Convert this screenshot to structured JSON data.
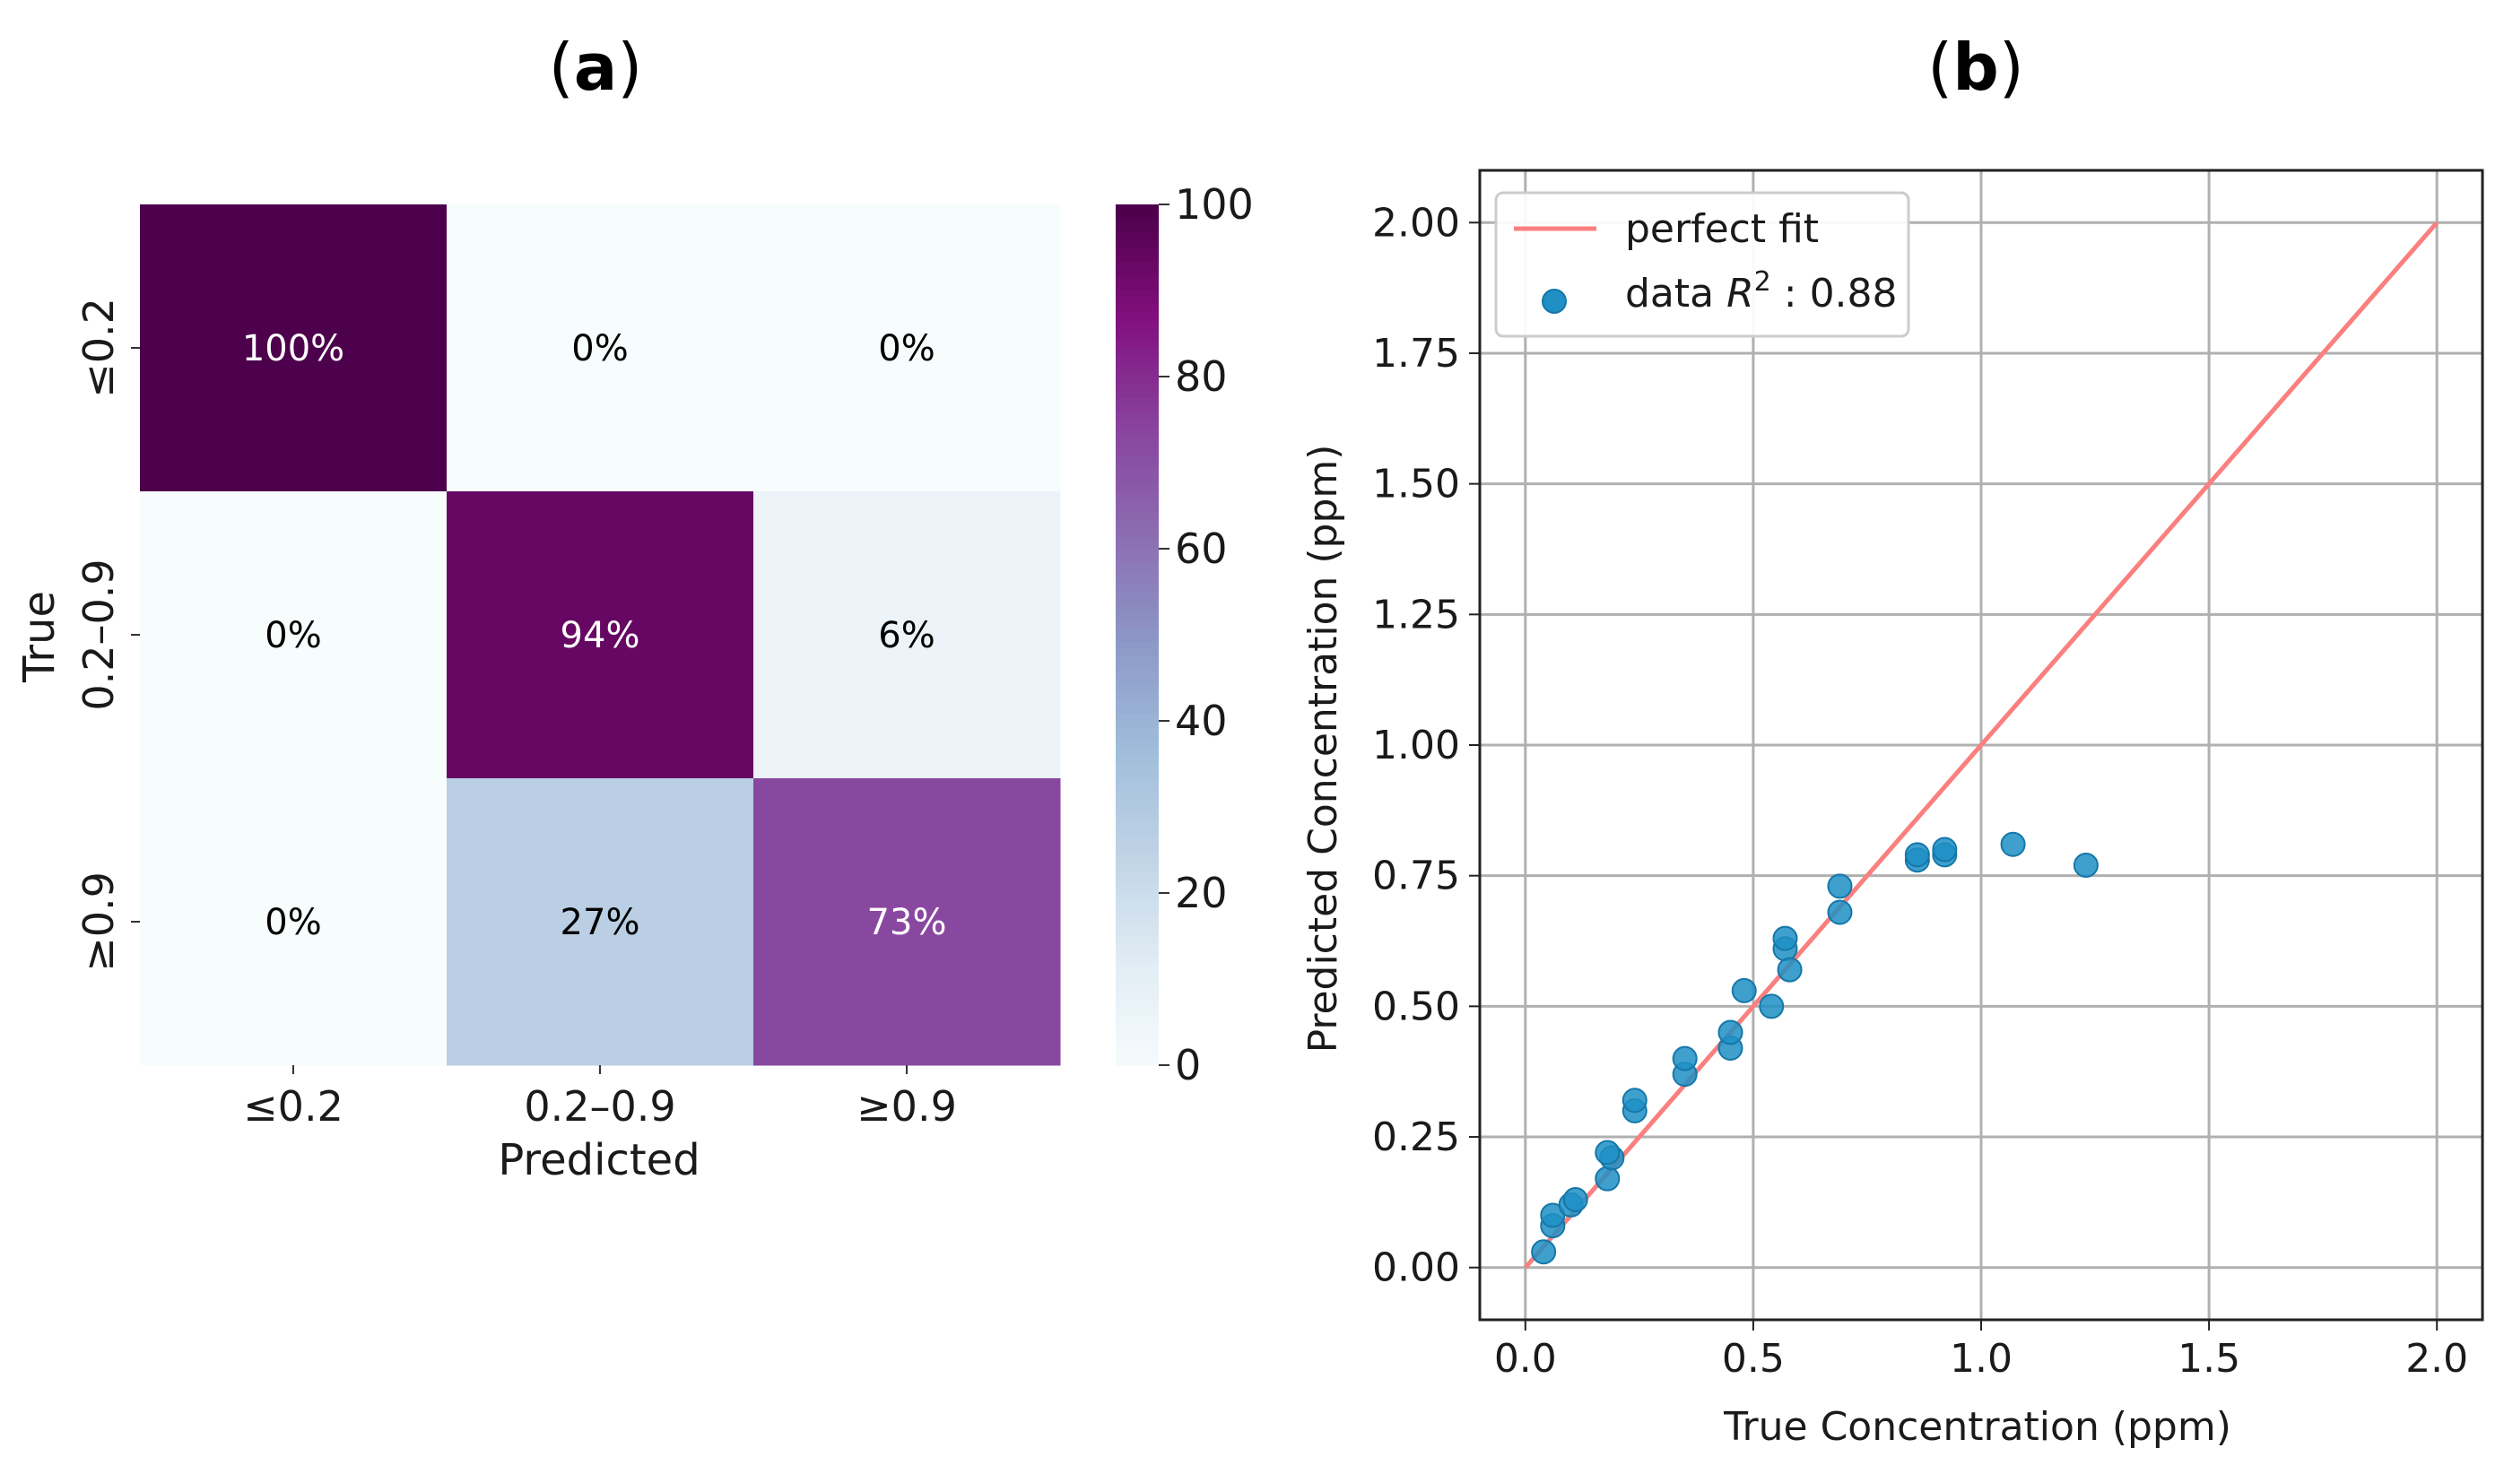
{
  "panels": {
    "a": {
      "label_open": "(",
      "label_letter": "a",
      "label_close": ")"
    },
    "b": {
      "label_open": "(",
      "label_letter": "b",
      "label_close": ")"
    }
  },
  "chart_data": [
    {
      "type": "heatmap",
      "xlabel": "Predicted",
      "ylabel": "True",
      "x_categories": [
        "≤0.2",
        "0.2–0.9",
        "≥0.9"
      ],
      "y_categories": [
        "≤0.2",
        "0.2–0.9",
        "≥0.9"
      ],
      "values": [
        [
          100,
          0,
          0
        ],
        [
          0,
          94,
          6
        ],
        [
          0,
          27,
          73
        ]
      ],
      "cell_labels": [
        [
          "100%",
          "0%",
          "0%"
        ],
        [
          "0%",
          "94%",
          "6%"
        ],
        [
          "0%",
          "27%",
          "73%"
        ]
      ],
      "colormap": "BuPu",
      "colorbar": {
        "min": 0,
        "max": 100,
        "ticks": [
          0,
          20,
          40,
          60,
          80,
          100
        ]
      }
    },
    {
      "type": "scatter",
      "xlabel": "True Concentration (ppm)",
      "ylabel": "Predicted Concentration (ppm)",
      "xlim": [
        -0.1,
        2.1
      ],
      "ylim": [
        -0.1,
        2.1
      ],
      "xticks": [
        0.0,
        0.5,
        1.0,
        1.5,
        2.0
      ],
      "xtick_labels": [
        "0.0",
        "0.5",
        "1.0",
        "1.5",
        "2.0"
      ],
      "yticks": [
        0.0,
        0.25,
        0.5,
        0.75,
        1.0,
        1.25,
        1.5,
        1.75,
        2.0
      ],
      "ytick_labels": [
        "0.00",
        "0.25",
        "0.50",
        "0.75",
        "1.00",
        "1.25",
        "1.50",
        "1.75",
        "2.00"
      ],
      "grid": true,
      "legend": {
        "position": "top-left",
        "entries": [
          {
            "kind": "line",
            "label": "perfect fit",
            "color": "#fa7f7f"
          },
          {
            "kind": "marker",
            "label_prefix": "data ",
            "label_var": "R",
            "label_sup": "2",
            "label_suffix": " : 0.88",
            "color": "#1f8fc4"
          }
        ]
      },
      "series": [
        {
          "name": "perfect fit",
          "kind": "line",
          "x": [
            0,
            2
          ],
          "y": [
            0,
            2
          ],
          "color": "#fa7f7f"
        },
        {
          "name": "data",
          "kind": "scatter",
          "color": "#1f8fc4",
          "x": [
            0.04,
            0.06,
            0.06,
            0.1,
            0.11,
            0.18,
            0.19,
            0.18,
            0.24,
            0.24,
            0.35,
            0.35,
            0.45,
            0.45,
            0.48,
            0.54,
            0.57,
            0.57,
            0.58,
            0.69,
            0.69,
            0.86,
            0.86,
            0.92,
            0.92,
            1.07,
            1.23
          ],
          "y": [
            0.03,
            0.08,
            0.1,
            0.12,
            0.13,
            0.17,
            0.21,
            0.22,
            0.3,
            0.32,
            0.37,
            0.4,
            0.42,
            0.45,
            0.53,
            0.5,
            0.61,
            0.63,
            0.57,
            0.68,
            0.73,
            0.78,
            0.79,
            0.79,
            0.8,
            0.81,
            0.77
          ]
        }
      ]
    }
  ]
}
